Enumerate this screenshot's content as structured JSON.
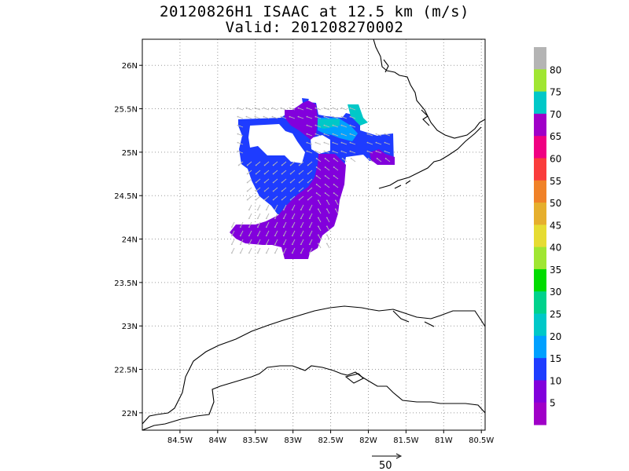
{
  "title": {
    "line1": "20120826H1 ISAAC at 12.5 km (m/s)",
    "line2": "Valid: 201208270002"
  },
  "map": {
    "lon_range": [
      -85.0,
      -80.45
    ],
    "lat_range": [
      21.8,
      26.3
    ],
    "lon_ticks": [
      {
        "value": -84.5,
        "label": "84.5W"
      },
      {
        "value": -84.0,
        "label": "84W"
      },
      {
        "value": -83.5,
        "label": "83.5W"
      },
      {
        "value": -83.0,
        "label": "83W"
      },
      {
        "value": -82.5,
        "label": "82.5W"
      },
      {
        "value": -82.0,
        "label": "82W"
      },
      {
        "value": -81.5,
        "label": "81.5W"
      },
      {
        "value": -81.0,
        "label": "81W"
      },
      {
        "value": -80.5,
        "label": "80.5W"
      }
    ],
    "lat_ticks": [
      {
        "value": 22.0,
        "label": "22N"
      },
      {
        "value": 22.5,
        "label": "22.5N"
      },
      {
        "value": 23.0,
        "label": "23N"
      },
      {
        "value": 23.5,
        "label": "23.5N"
      },
      {
        "value": 24.0,
        "label": "24N"
      },
      {
        "value": 24.5,
        "label": "24.5N"
      },
      {
        "value": 25.0,
        "label": "25N"
      },
      {
        "value": 25.5,
        "label": "25.5N"
      },
      {
        "value": 26.0,
        "label": "26N"
      }
    ],
    "grid": true,
    "coastline_color": "#000000"
  },
  "colorbar": {
    "labels": [
      "5",
      "10",
      "15",
      "20",
      "25",
      "30",
      "35",
      "40",
      "45",
      "50",
      "55",
      "60",
      "65",
      "70",
      "75",
      "80"
    ],
    "colors": [
      "#a000c8",
      "#8200dc",
      "#1e3cff",
      "#00a0ff",
      "#00c8c8",
      "#00d28c",
      "#00dc00",
      "#a0e632",
      "#e6dc32",
      "#e6af2d",
      "#f08228",
      "#fa3c3c",
      "#f00082",
      "#a000c8",
      "#00c8c8",
      "#a0e632",
      "#b4b4b4"
    ]
  },
  "wind_field": {
    "units": "m/s",
    "reference_vector_label": "50",
    "regions": [
      {
        "level": "10-15 m/s",
        "color": "#1e3cff"
      },
      {
        "level": "5-10 m/s",
        "color": "#8200dc"
      },
      {
        "level": "15-20 m/s",
        "color": "#00a0ff"
      },
      {
        "level": "20-25 m/s",
        "color": "#00c8c8"
      },
      {
        "level": "0-5 m/s",
        "color": "#a000c8"
      }
    ]
  }
}
